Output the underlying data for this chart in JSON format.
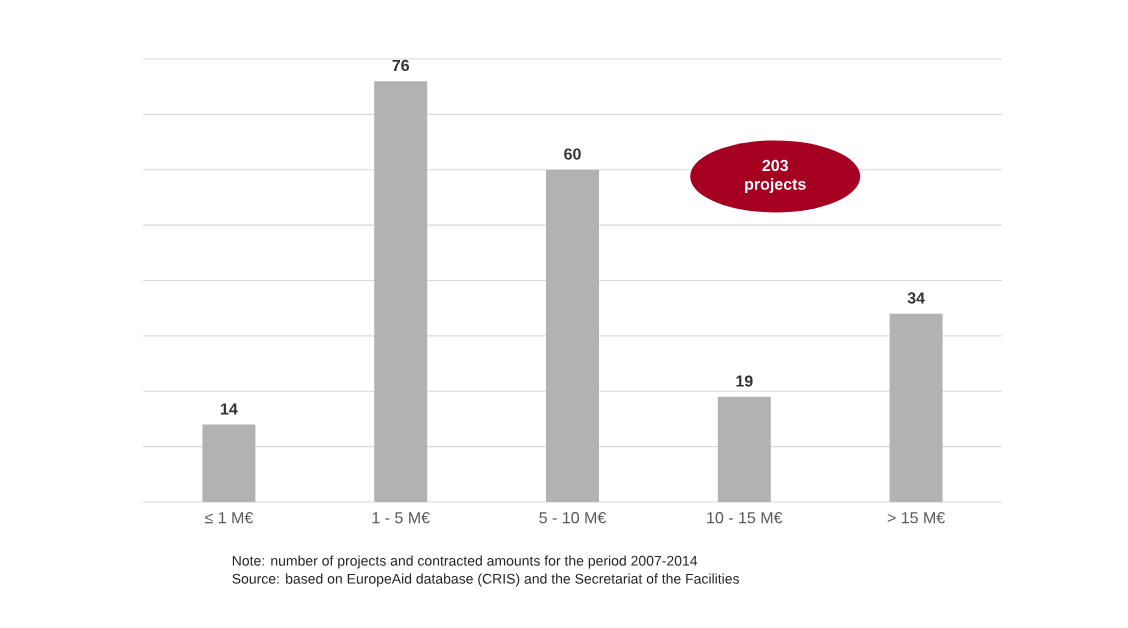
{
  "chart_data": {
    "type": "bar",
    "categories": [
      "≤ 1 M€",
      "1 - 5 M€",
      "5 - 10 M€",
      "10 - 15 M€",
      "> 15 M€"
    ],
    "values": [
      14,
      76,
      60,
      19,
      34
    ],
    "color": "#b2b2b2",
    "ylim": [
      0,
      80
    ],
    "yticks": [
      {
        "value": 0,
        "label": null
      },
      {
        "value": 10,
        "label": null
      },
      {
        "value": 20,
        "label": null
      },
      {
        "value": 30,
        "label": null
      },
      {
        "value": 40,
        "label": null
      },
      {
        "value": 50,
        "label": null
      },
      {
        "value": 60,
        "label": null
      },
      {
        "value": 70,
        "label": null
      },
      {
        "value": 80,
        "label": null
      }
    ],
    "grid": "y",
    "tick_labels": "x",
    "data_labels": true,
    "annotations": [
      "203 projects",
      "Note: number of projects and contracted amounts for the period 2007-2014",
      "Source: based on EuropeAid database (CRIS) and the Secretariat of the Facilities"
    ]
  }
}
